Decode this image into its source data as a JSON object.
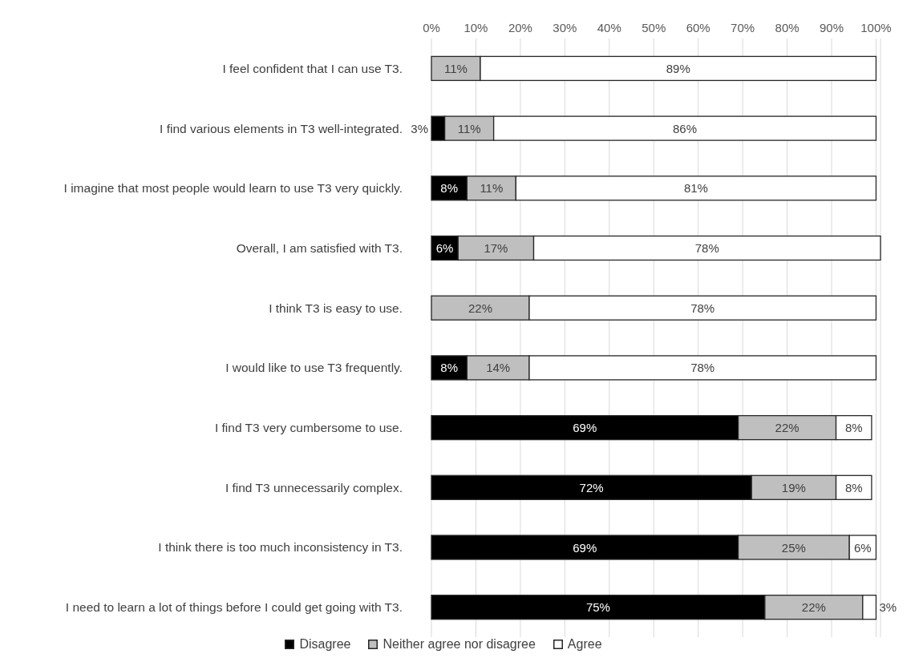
{
  "chart_data": {
    "type": "bar",
    "orientation": "horizontal",
    "stacked": true,
    "categories": [
      "I feel confident that I can use T3.",
      "I find various elements in T3 well-integrated.",
      "I imagine that most people would learn to use T3 very quickly.",
      "Overall, I am satisfied with T3.",
      "I think T3 is easy to use.",
      "I would like to use T3 frequently.",
      "I find T3 very cumbersome to use.",
      "I find T3 unnecessarily complex.",
      "I think there is too much inconsistency in T3.",
      "I need to learn a lot of things before I could get going with T3."
    ],
    "series": [
      {
        "name": "Disagree",
        "color": "#000000",
        "values": [
          0,
          3,
          8,
          6,
          0,
          8,
          69,
          72,
          69,
          75
        ],
        "value_labels": [
          null,
          "3%",
          "8%",
          "6%",
          null,
          "8%",
          "69%",
          "72%",
          "69%",
          "75%"
        ]
      },
      {
        "name": "Neither agree nor disagree",
        "color": "#bfbfbf",
        "values": [
          11,
          11,
          11,
          17,
          22,
          14,
          22,
          19,
          25,
          22
        ],
        "value_labels": [
          "11%",
          "11%",
          "11%",
          "17%",
          "22%",
          "14%",
          "22%",
          "19%",
          "25%",
          "22%"
        ]
      },
      {
        "name": "Agree",
        "color": "#ffffff",
        "values": [
          89,
          86,
          81,
          78,
          78,
          78,
          8,
          8,
          6,
          3
        ],
        "value_labels": [
          "89%",
          "86%",
          "81%",
          "78%",
          "78%",
          "78%",
          "8%",
          "8%",
          "6%",
          "3%"
        ]
      }
    ],
    "xlim": [
      0,
      101
    ],
    "xticks": [
      {
        "value": 0,
        "label": "0%"
      },
      {
        "value": 10,
        "label": "10%"
      },
      {
        "value": 20,
        "label": "20%"
      },
      {
        "value": 30,
        "label": "30%"
      },
      {
        "value": 40,
        "label": "40%"
      },
      {
        "value": 50,
        "label": "50%"
      },
      {
        "value": 60,
        "label": "60%"
      },
      {
        "value": 70,
        "label": "70%"
      },
      {
        "value": 80,
        "label": "80%"
      },
      {
        "value": 90,
        "label": "90%"
      },
      {
        "value": 100,
        "label": "100%"
      }
    ],
    "grid": "x",
    "legend": "bottom"
  }
}
